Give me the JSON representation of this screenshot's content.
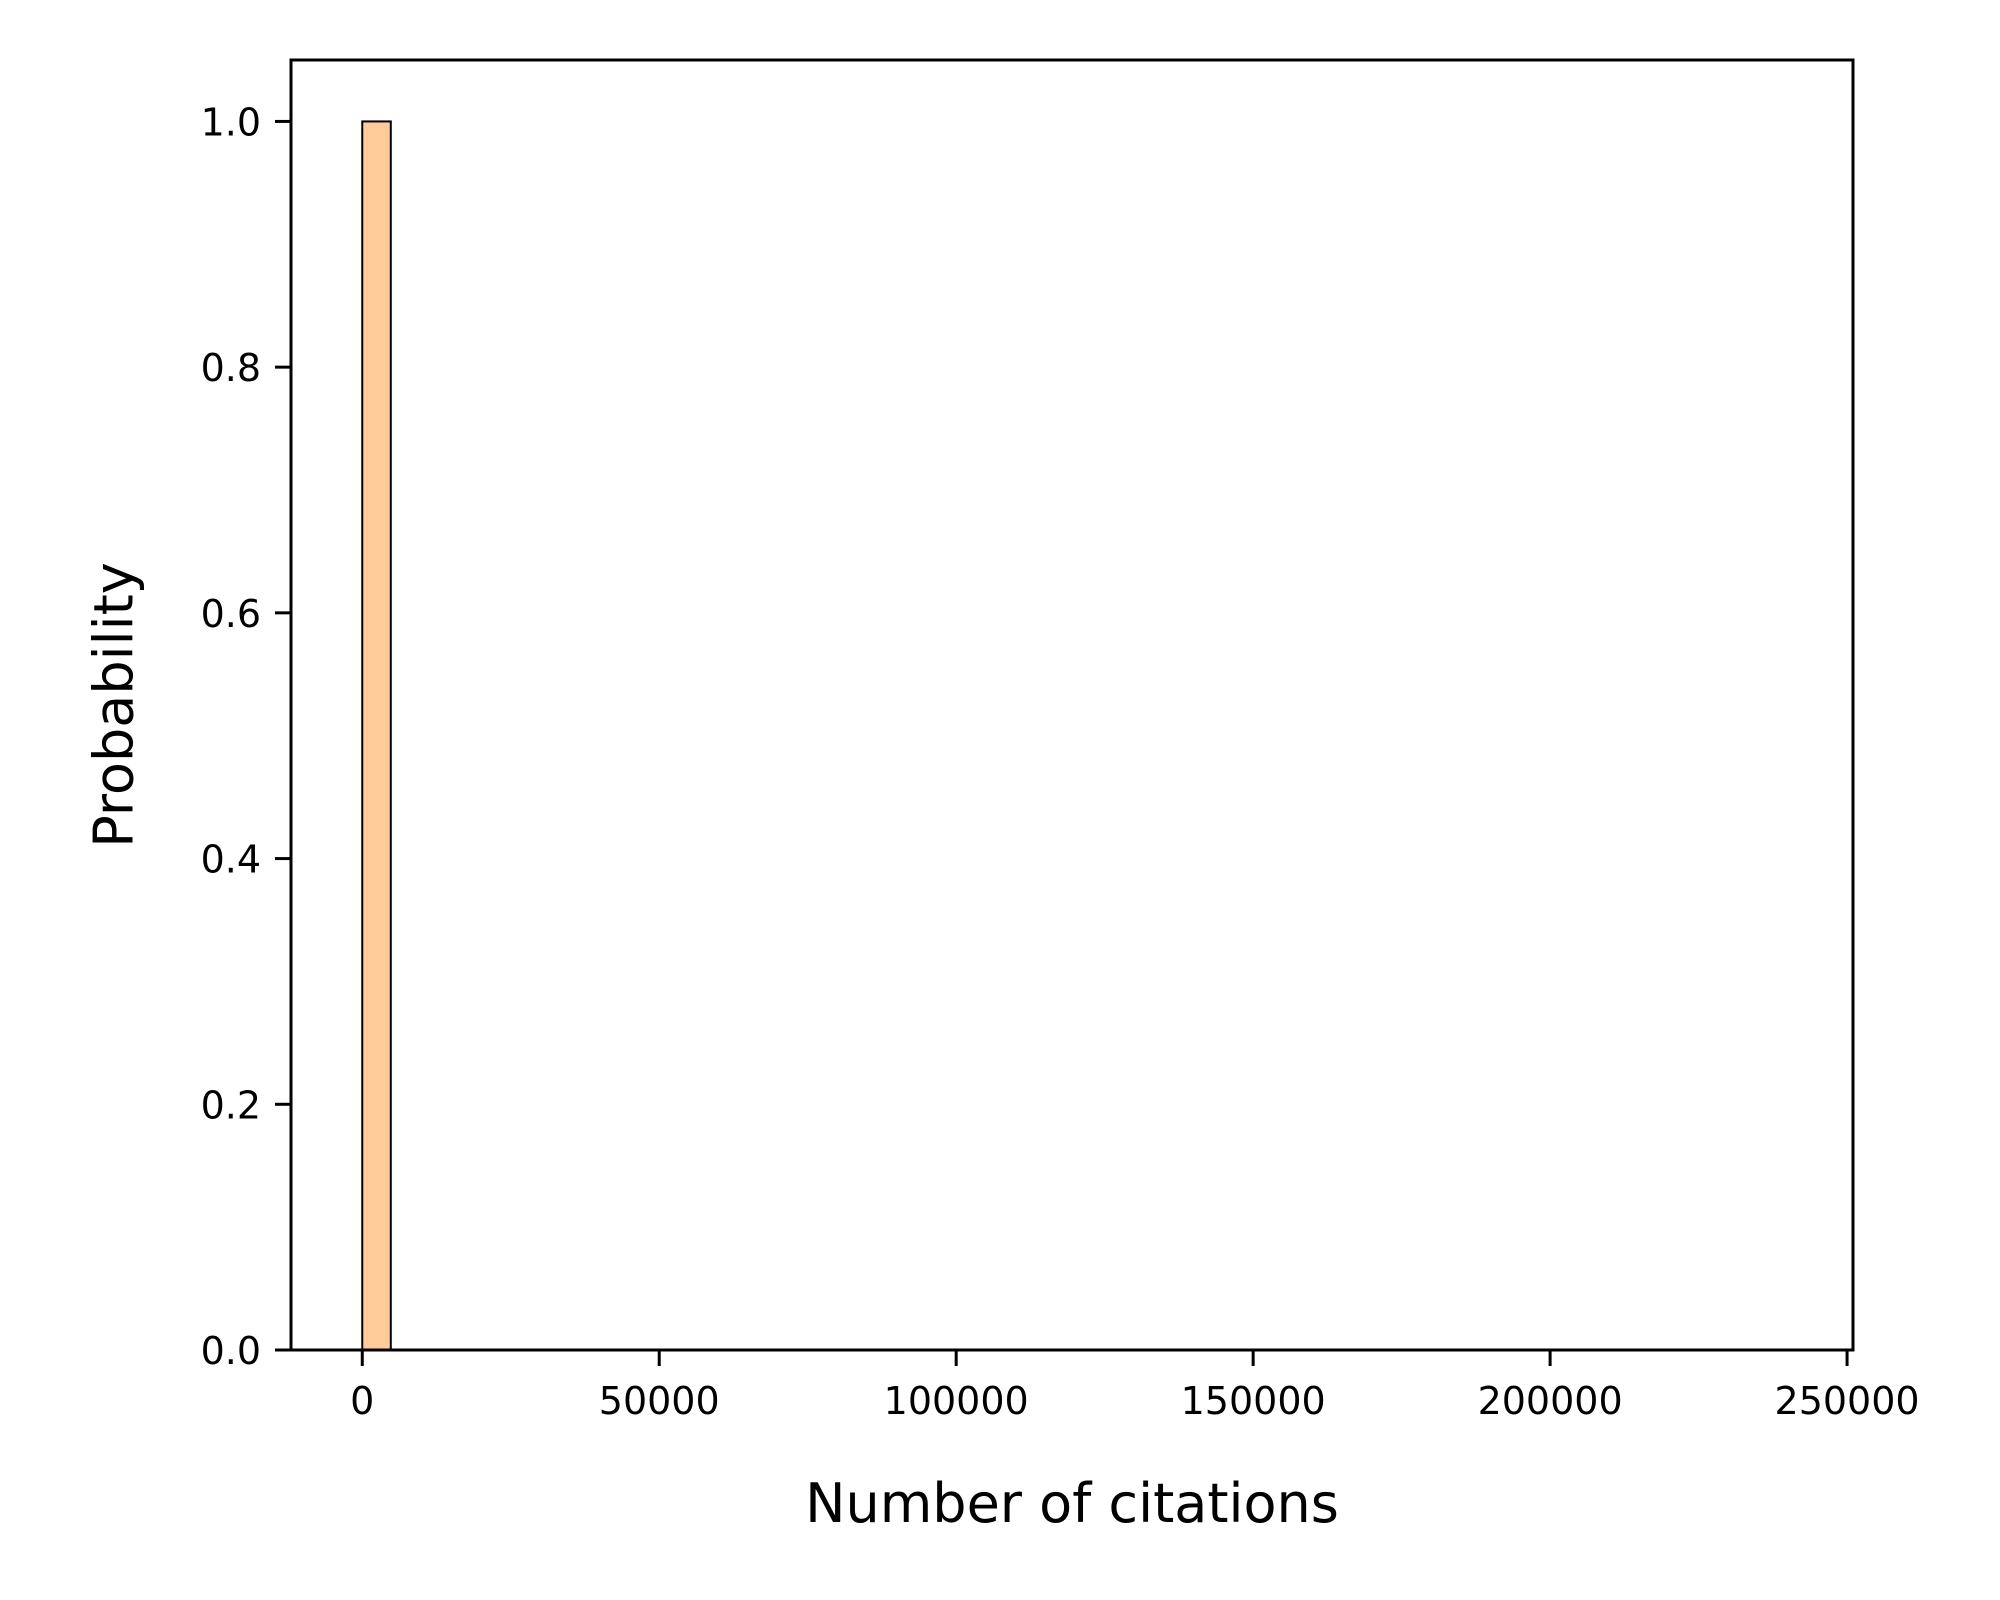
{
  "chart_data": {
    "type": "bar",
    "title": "",
    "xlabel": "Number of citations",
    "ylabel": "Probability",
    "xlim": [
      -12000,
      251000
    ],
    "ylim": [
      0,
      1.05
    ],
    "xticks": [
      0,
      50000,
      100000,
      150000,
      200000,
      250000
    ],
    "xtick_labels": [
      "0",
      "50000",
      "100000",
      "150000",
      "200000",
      "250000"
    ],
    "yticks": [
      0.0,
      0.2,
      0.4,
      0.6,
      0.8,
      1.0
    ],
    "ytick_labels": [
      "0.0",
      "0.2",
      "0.4",
      "0.6",
      "0.8",
      "1.0"
    ],
    "bins": [
      {
        "x_start": 0,
        "x_end": 4800,
        "value": 1.0
      }
    ],
    "grid": false,
    "legend": "none",
    "colors": {
      "bar_fill": "#ffcc99",
      "bar_edge": "#000000",
      "axis": "#000000"
    }
  }
}
